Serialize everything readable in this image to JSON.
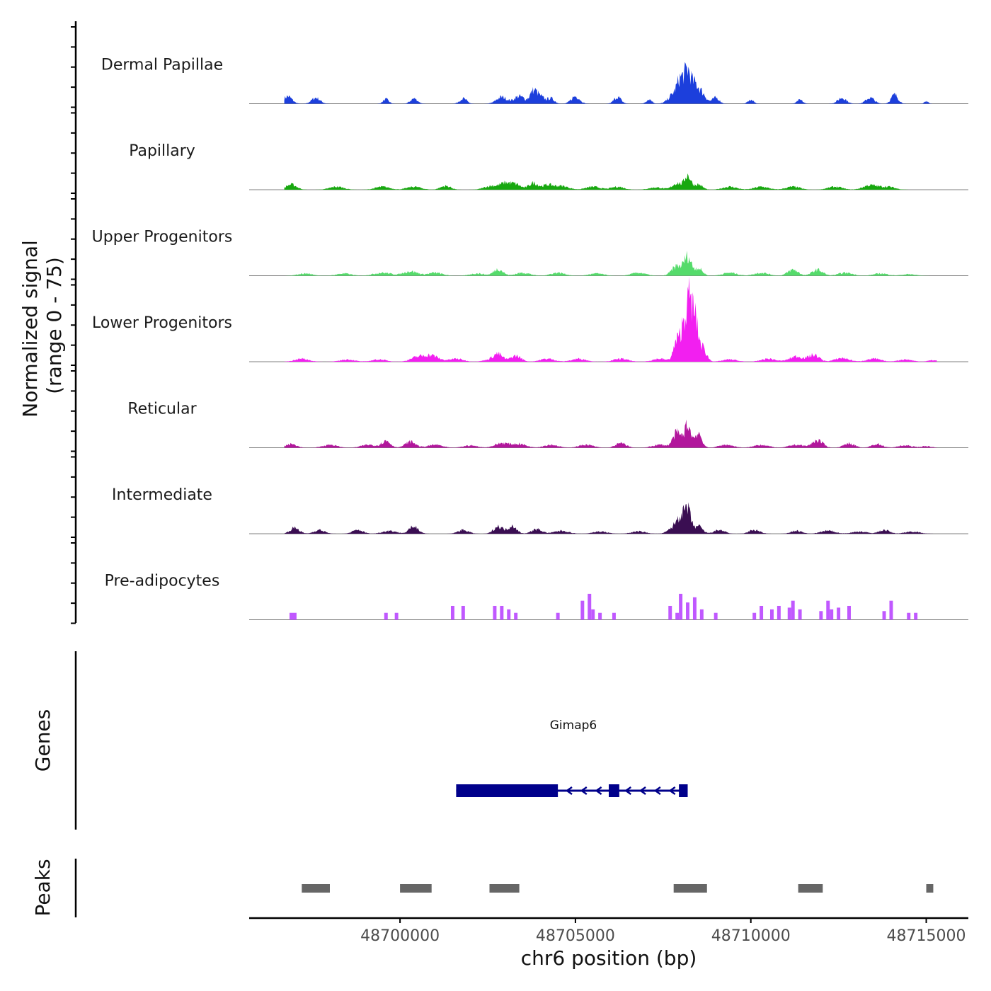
{
  "chart_data": {
    "type": "area",
    "title": "",
    "ylabel_line1": "Normalized signal",
    "ylabel_line2": "(range 0 - 75)",
    "yrange": [
      0,
      75
    ],
    "xlabel": "chr6 position (bp)",
    "xlim": [
      48695700,
      48716200
    ],
    "x_ticks": [
      48700000,
      48705000,
      48710000,
      48715000
    ],
    "x_tick_labels": [
      "48700000",
      "48705000",
      "48710000",
      "48715000"
    ],
    "tracks": [
      {
        "name": "Dermal Papillae",
        "color": "#1c3fdc",
        "peaks": [
          [
            48696800,
            10,
            120
          ],
          [
            48697600,
            8,
            120
          ],
          [
            48699600,
            6,
            80
          ],
          [
            48700400,
            7,
            100
          ],
          [
            48701800,
            7,
            100
          ],
          [
            48702900,
            9,
            150
          ],
          [
            48703400,
            10,
            150
          ],
          [
            48703800,
            16,
            100
          ],
          [
            48704000,
            9,
            120
          ],
          [
            48704300,
            7,
            100
          ],
          [
            48705000,
            10,
            120
          ],
          [
            48706200,
            9,
            100
          ],
          [
            48707100,
            6,
            80
          ],
          [
            48707800,
            12,
            150
          ],
          [
            48708000,
            28,
            100
          ],
          [
            48708200,
            40,
            90
          ],
          [
            48708400,
            22,
            100
          ],
          [
            48708600,
            14,
            120
          ],
          [
            48709000,
            8,
            100
          ],
          [
            48710000,
            5,
            80
          ],
          [
            48711400,
            5,
            80
          ],
          [
            48712600,
            8,
            120
          ],
          [
            48713400,
            8,
            120
          ],
          [
            48714100,
            12,
            100
          ],
          [
            48715000,
            3,
            60
          ]
        ]
      },
      {
        "name": "Papillary",
        "color": "#17a80f",
        "peaks": [
          [
            48696900,
            7,
            150
          ],
          [
            48698200,
            4,
            200
          ],
          [
            48699500,
            4,
            200
          ],
          [
            48700400,
            4,
            200
          ],
          [
            48701300,
            5,
            150
          ],
          [
            48702600,
            5,
            200
          ],
          [
            48703000,
            8,
            150
          ],
          [
            48703300,
            7,
            150
          ],
          [
            48703800,
            9,
            130
          ],
          [
            48704200,
            6,
            150
          ],
          [
            48704600,
            5,
            200
          ],
          [
            48705500,
            4,
            200
          ],
          [
            48706200,
            4,
            180
          ],
          [
            48707300,
            3,
            200
          ],
          [
            48707900,
            9,
            130
          ],
          [
            48708200,
            19,
            90
          ],
          [
            48708500,
            7,
            120
          ],
          [
            48709400,
            4,
            200
          ],
          [
            48710300,
            4,
            200
          ],
          [
            48711200,
            4,
            200
          ],
          [
            48712400,
            4,
            200
          ],
          [
            48713400,
            6,
            200
          ],
          [
            48713900,
            4,
            200
          ]
        ]
      },
      {
        "name": "Upper Progenitors",
        "color": "#55db6b",
        "peaks": [
          [
            48697300,
            3,
            200
          ],
          [
            48698400,
            3,
            200
          ],
          [
            48699500,
            4,
            250
          ],
          [
            48700300,
            6,
            200
          ],
          [
            48701000,
            4,
            200
          ],
          [
            48702200,
            3,
            200
          ],
          [
            48702800,
            9,
            130
          ],
          [
            48703500,
            4,
            200
          ],
          [
            48704500,
            4,
            200
          ],
          [
            48705600,
            3,
            200
          ],
          [
            48706800,
            4,
            200
          ],
          [
            48707900,
            13,
            150
          ],
          [
            48708200,
            24,
            100
          ],
          [
            48708500,
            10,
            120
          ],
          [
            48709400,
            4,
            200
          ],
          [
            48710300,
            4,
            200
          ],
          [
            48711200,
            8,
            150
          ],
          [
            48711900,
            8,
            150
          ],
          [
            48712700,
            4,
            200
          ],
          [
            48713700,
            3,
            200
          ],
          [
            48714500,
            2,
            200
          ]
        ]
      },
      {
        "name": "Lower Progenitors",
        "color": "#f21ff0",
        "peaks": [
          [
            48697200,
            4,
            200
          ],
          [
            48698500,
            3,
            200
          ],
          [
            48699400,
            3,
            200
          ],
          [
            48700500,
            6,
            200
          ],
          [
            48700900,
            8,
            200
          ],
          [
            48701600,
            4,
            200
          ],
          [
            48702600,
            3,
            200
          ],
          [
            48702800,
            9,
            130
          ],
          [
            48703300,
            8,
            150
          ],
          [
            48704200,
            4,
            200
          ],
          [
            48705100,
            4,
            200
          ],
          [
            48706300,
            4,
            200
          ],
          [
            48707400,
            4,
            200
          ],
          [
            48707900,
            28,
            100
          ],
          [
            48708100,
            50,
            80
          ],
          [
            48708250,
            70,
            70
          ],
          [
            48708400,
            55,
            80
          ],
          [
            48708600,
            20,
            120
          ],
          [
            48709400,
            3,
            200
          ],
          [
            48710500,
            4,
            200
          ],
          [
            48711300,
            7,
            200
          ],
          [
            48711800,
            9,
            150
          ],
          [
            48712600,
            5,
            200
          ],
          [
            48713500,
            4,
            200
          ],
          [
            48714400,
            3,
            200
          ],
          [
            48715200,
            2,
            150
          ]
        ]
      },
      {
        "name": "Reticular",
        "color": "#b2169c",
        "peaks": [
          [
            48696900,
            5,
            150
          ],
          [
            48698000,
            4,
            200
          ],
          [
            48699100,
            4,
            200
          ],
          [
            48699600,
            9,
            130
          ],
          [
            48700300,
            8,
            150
          ],
          [
            48701000,
            4,
            200
          ],
          [
            48702000,
            3,
            200
          ],
          [
            48702900,
            6,
            200
          ],
          [
            48703400,
            5,
            200
          ],
          [
            48704300,
            4,
            200
          ],
          [
            48705300,
            4,
            200
          ],
          [
            48706300,
            6,
            150
          ],
          [
            48707400,
            4,
            200
          ],
          [
            48707900,
            20,
            120
          ],
          [
            48708200,
            30,
            90
          ],
          [
            48708500,
            20,
            100
          ],
          [
            48709300,
            4,
            200
          ],
          [
            48710300,
            4,
            200
          ],
          [
            48711300,
            4,
            200
          ],
          [
            48711900,
            10,
            150
          ],
          [
            48712800,
            6,
            150
          ],
          [
            48713600,
            5,
            150
          ],
          [
            48714400,
            3,
            200
          ],
          [
            48715000,
            2,
            150
          ]
        ]
      },
      {
        "name": "Intermediate",
        "color": "#3a0e52",
        "peaks": [
          [
            48697000,
            8,
            130
          ],
          [
            48697700,
            5,
            150
          ],
          [
            48698800,
            5,
            150
          ],
          [
            48699700,
            4,
            200
          ],
          [
            48700400,
            10,
            130
          ],
          [
            48701800,
            5,
            150
          ],
          [
            48702800,
            10,
            130
          ],
          [
            48703200,
            11,
            120
          ],
          [
            48703900,
            6,
            150
          ],
          [
            48704600,
            4,
            200
          ],
          [
            48705700,
            3,
            200
          ],
          [
            48706800,
            3,
            200
          ],
          [
            48707800,
            8,
            150
          ],
          [
            48708000,
            20,
            110
          ],
          [
            48708200,
            30,
            90
          ],
          [
            48708500,
            10,
            120
          ],
          [
            48709100,
            5,
            150
          ],
          [
            48710100,
            5,
            150
          ],
          [
            48711300,
            4,
            150
          ],
          [
            48712200,
            4,
            200
          ],
          [
            48713100,
            3,
            200
          ],
          [
            48713800,
            5,
            150
          ],
          [
            48714600,
            3,
            200
          ]
        ]
      },
      {
        "name": "Pre-adipocytes",
        "color": "#c058ff",
        "blocks": [
          [
            48696850,
            48697050,
            8
          ],
          [
            48699550,
            48699650,
            8
          ],
          [
            48699850,
            48699950,
            8
          ],
          [
            48701450,
            48701550,
            16
          ],
          [
            48701750,
            48701850,
            16
          ],
          [
            48702650,
            48702750,
            16
          ],
          [
            48702850,
            48702950,
            16
          ],
          [
            48703050,
            48703150,
            12
          ],
          [
            48703250,
            48703350,
            8
          ],
          [
            48704450,
            48704550,
            8
          ],
          [
            48705150,
            48705250,
            22
          ],
          [
            48705350,
            48705450,
            30
          ],
          [
            48705450,
            48705550,
            12
          ],
          [
            48705650,
            48705750,
            8
          ],
          [
            48706050,
            48706150,
            8
          ],
          [
            48707650,
            48707750,
            16
          ],
          [
            48707850,
            48707950,
            8
          ],
          [
            48707950,
            48708050,
            30
          ],
          [
            48708150,
            48708250,
            20
          ],
          [
            48708350,
            48708450,
            26
          ],
          [
            48708550,
            48708650,
            12
          ],
          [
            48708950,
            48709050,
            8
          ],
          [
            48710050,
            48710150,
            8
          ],
          [
            48710250,
            48710350,
            16
          ],
          [
            48710550,
            48710650,
            12
          ],
          [
            48710750,
            48710850,
            16
          ],
          [
            48711050,
            48711150,
            14
          ],
          [
            48711150,
            48711250,
            22
          ],
          [
            48711350,
            48711450,
            12
          ],
          [
            48711950,
            48712050,
            10
          ],
          [
            48712150,
            48712250,
            22
          ],
          [
            48712250,
            48712350,
            12
          ],
          [
            48712450,
            48712550,
            14
          ],
          [
            48712750,
            48712850,
            16
          ],
          [
            48713750,
            48713850,
            10
          ],
          [
            48713950,
            48714050,
            22
          ],
          [
            48714450,
            48714550,
            8
          ],
          [
            48714650,
            48714750,
            8
          ]
        ]
      }
    ],
    "genes_axis_label": "Genes",
    "gene": {
      "name": "Gimap6",
      "strand": "-",
      "color": "#00008b",
      "tx_start": 48701600,
      "tx_end": 48708200,
      "exons": [
        [
          48701600,
          48704500
        ],
        [
          48705950,
          48706250
        ],
        [
          48707950,
          48708200
        ]
      ]
    },
    "peaks_axis_label": "Peaks",
    "peak_color": "#666666",
    "peak_regions": [
      [
        48697200,
        48698000
      ],
      [
        48700000,
        48700900
      ],
      [
        48702550,
        48703400
      ],
      [
        48707800,
        48708750
      ],
      [
        48711350,
        48712050
      ],
      [
        48715000,
        48715200
      ]
    ]
  }
}
